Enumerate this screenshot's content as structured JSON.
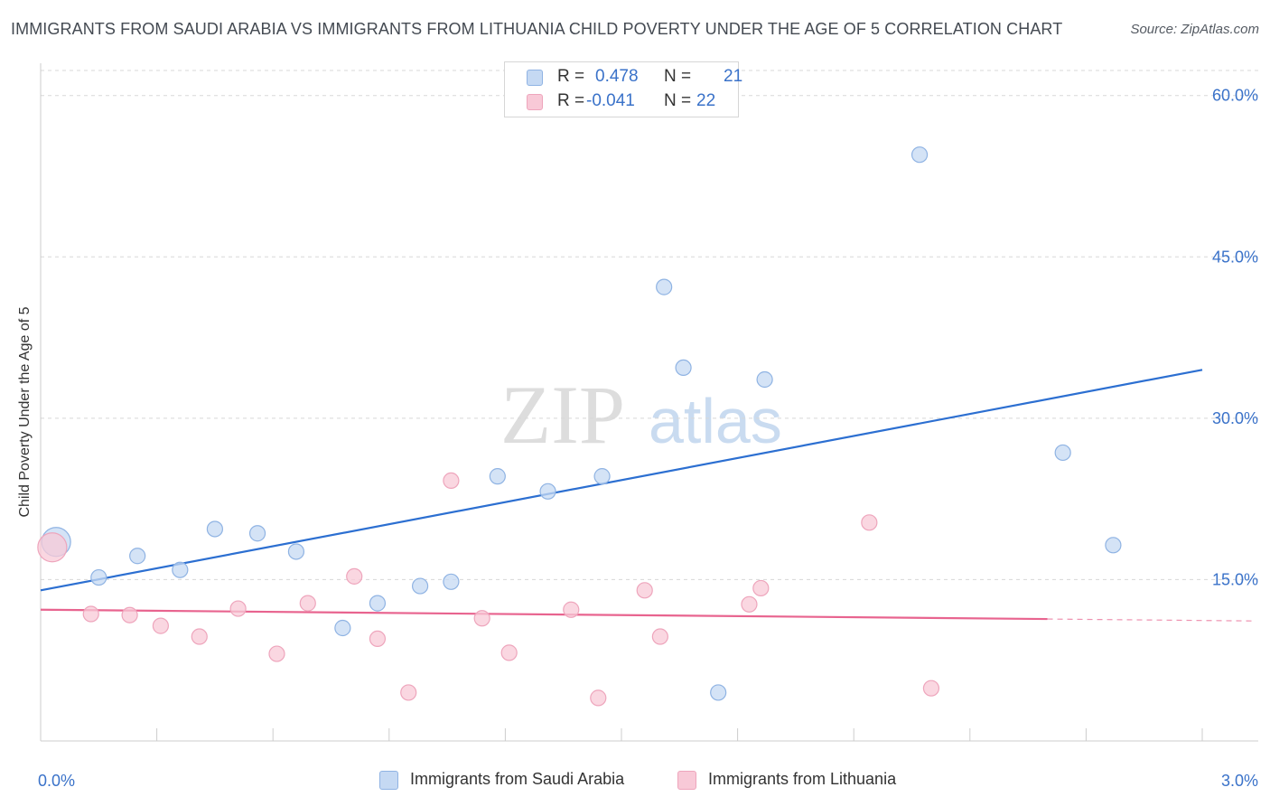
{
  "title": "IMMIGRANTS FROM SAUDI ARABIA VS IMMIGRANTS FROM LITHUANIA CHILD POVERTY UNDER THE AGE OF 5 CORRELATION CHART",
  "source": "Source: ZipAtlas.com",
  "watermark": {
    "zip": "ZIP",
    "atlas": "atlas"
  },
  "colors": {
    "blue_fill": "#c5d9f3",
    "blue_stroke": "#8fb3e3",
    "blue_line": "#2c6fd1",
    "pink_fill": "#f8c9d7",
    "pink_stroke": "#eea5bc",
    "pink_line": "#e8648f",
    "tick_label": "#3a72c9",
    "grid": "#d8d8d8"
  },
  "legend": {
    "rows": [
      {
        "r_label": "R =",
        "r_value": "0.478",
        "n_label": "N =",
        "n_value": "21"
      },
      {
        "r_label": "R =",
        "r_value": "-0.041",
        "n_label": "N =",
        "n_value": "22"
      }
    ]
  },
  "chart_data": {
    "type": "scatter",
    "title": "IMMIGRANTS FROM SAUDI ARABIA VS IMMIGRANTS FROM LITHUANIA CHILD POVERTY UNDER THE AGE OF 5 CORRELATION CHART",
    "xlabel": "",
    "ylabel": "Child Poverty Under the Age of 5",
    "xlim": [
      0,
      3.0
    ],
    "ylim": [
      0,
      63
    ],
    "x_tick_labels": [
      {
        "value": 0,
        "label": "0.0%"
      },
      {
        "value": 3.0,
        "label": "3.0%"
      }
    ],
    "x_minor_ticks": [
      0.3,
      0.6,
      0.9,
      1.2,
      1.5,
      1.8,
      2.1,
      2.4,
      2.7,
      3.0
    ],
    "y_ticks": [
      {
        "value": 15,
        "label": "15.0%"
      },
      {
        "value": 30,
        "label": "30.0%"
      },
      {
        "value": 45,
        "label": "45.0%"
      },
      {
        "value": 60,
        "label": "60.0%"
      }
    ],
    "grid": true,
    "legend_position": "bottom-center",
    "series": [
      {
        "name": "Immigrants from Saudi Arabia",
        "color": "blue",
        "r": 0.478,
        "n": 21,
        "trend": {
          "x0": 0.0,
          "y0": 14.0,
          "x1": 3.0,
          "y1": 34.5,
          "dashed_from": null
        },
        "points": [
          {
            "x": 0.04,
            "y": 18.5,
            "big": true
          },
          {
            "x": 0.15,
            "y": 15.2
          },
          {
            "x": 0.25,
            "y": 17.2
          },
          {
            "x": 0.36,
            "y": 15.9
          },
          {
            "x": 0.45,
            "y": 19.7
          },
          {
            "x": 0.56,
            "y": 19.3
          },
          {
            "x": 0.66,
            "y": 17.6
          },
          {
            "x": 0.78,
            "y": 10.5
          },
          {
            "x": 0.87,
            "y": 12.8
          },
          {
            "x": 0.98,
            "y": 14.4
          },
          {
            "x": 1.06,
            "y": 14.8
          },
          {
            "x": 1.18,
            "y": 24.6
          },
          {
            "x": 1.31,
            "y": 23.2
          },
          {
            "x": 1.45,
            "y": 24.6
          },
          {
            "x": 1.61,
            "y": 42.2
          },
          {
            "x": 1.66,
            "y": 34.7
          },
          {
            "x": 1.75,
            "y": 4.5
          },
          {
            "x": 1.87,
            "y": 33.6
          },
          {
            "x": 2.27,
            "y": 54.5
          },
          {
            "x": 2.64,
            "y": 26.8
          },
          {
            "x": 2.77,
            "y": 18.2
          }
        ]
      },
      {
        "name": "Immigrants from Lithuania",
        "color": "pink",
        "r": -0.041,
        "n": 22,
        "trend": {
          "x0": 0.0,
          "y0": 12.2,
          "x1": 3.0,
          "y1": 11.2,
          "dashed_from": 2.6
        },
        "points": [
          {
            "x": 0.03,
            "y": 18.0,
            "big": true
          },
          {
            "x": 0.13,
            "y": 11.8
          },
          {
            "x": 0.23,
            "y": 11.7
          },
          {
            "x": 0.31,
            "y": 10.7
          },
          {
            "x": 0.41,
            "y": 9.7
          },
          {
            "x": 0.51,
            "y": 12.3
          },
          {
            "x": 0.61,
            "y": 8.1
          },
          {
            "x": 0.69,
            "y": 12.8
          },
          {
            "x": 0.81,
            "y": 15.3
          },
          {
            "x": 0.87,
            "y": 9.5
          },
          {
            "x": 0.95,
            "y": 4.5
          },
          {
            "x": 1.06,
            "y": 24.2
          },
          {
            "x": 1.14,
            "y": 11.4
          },
          {
            "x": 1.21,
            "y": 8.2
          },
          {
            "x": 1.37,
            "y": 12.2
          },
          {
            "x": 1.44,
            "y": 4.0
          },
          {
            "x": 1.56,
            "y": 14.0
          },
          {
            "x": 1.6,
            "y": 9.7
          },
          {
            "x": 1.83,
            "y": 12.7
          },
          {
            "x": 1.86,
            "y": 14.2
          },
          {
            "x": 2.14,
            "y": 20.3
          },
          {
            "x": 2.3,
            "y": 4.9
          }
        ]
      }
    ]
  }
}
